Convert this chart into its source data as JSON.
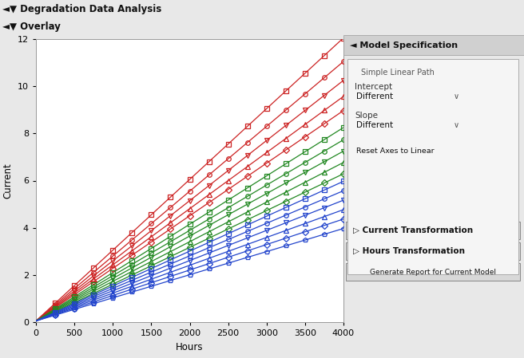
{
  "title": "Degradation Data Analysis",
  "subtitle": "Overlay",
  "xlabel": "Hours",
  "ylabel": "Current",
  "xlim": [
    0,
    4000
  ],
  "ylim": [
    0,
    12
  ],
  "xticks": [
    0,
    500,
    1000,
    1500,
    2000,
    2500,
    3000,
    3500,
    4000
  ],
  "yticks": [
    0,
    2,
    4,
    6,
    8,
    10,
    12
  ],
  "bg_color": "#e8e8e8",
  "panel_bg": "#e0e0e0",
  "plot_bg": "#ffffff",
  "header1_bg": "#d0d0d0",
  "header2_bg": "#d8d8d8",
  "red_slopes": [
    0.003,
    0.00275,
    0.00255,
    0.00238,
    0.00223
  ],
  "green_slopes": [
    0.00205,
    0.00192,
    0.0018,
    0.00168,
    0.00156
  ],
  "blue_slopes": [
    0.00148,
    0.00138,
    0.00128,
    0.00118,
    0.00108,
    0.00098
  ],
  "red_intercepts": [
    0.05,
    0.05,
    0.05,
    0.05,
    0.05
  ],
  "green_intercepts": [
    0.05,
    0.05,
    0.05,
    0.05,
    0.05
  ],
  "blue_intercepts": [
    0.05,
    0.05,
    0.05,
    0.05,
    0.05,
    0.05
  ],
  "markers_red": [
    "s",
    "o",
    "v",
    "^",
    "D"
  ],
  "markers_green": [
    "s",
    "o",
    "v",
    "^",
    "D"
  ],
  "markers_blue": [
    "s",
    "o",
    "v",
    "^",
    "D",
    "p"
  ],
  "red_color": "#cc2222",
  "green_color": "#228822",
  "blue_color": "#2244cc",
  "marker_size": 4,
  "line_width": 0.9,
  "data_points_x": [
    250,
    500,
    750,
    1000,
    1250,
    1500,
    1750,
    2000,
    2250,
    2500,
    2750,
    3000,
    3250,
    3500,
    3750,
    4000
  ]
}
